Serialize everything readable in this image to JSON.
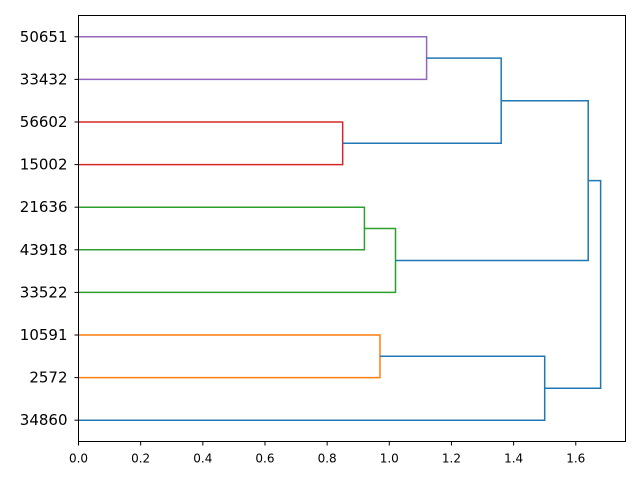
{
  "chart_data": {
    "type": "dendrogram",
    "orientation": "horizontal",
    "title": "",
    "xlabel": "",
    "ylabel": "",
    "xlim": [
      0,
      1.76
    ],
    "x_ticks": [
      0.0,
      0.2,
      0.4,
      0.6,
      0.8,
      1.0,
      1.2,
      1.4,
      1.6
    ],
    "x_tick_labels": [
      "0.0",
      "0.2",
      "0.4",
      "0.6",
      "0.8",
      "1.0",
      "1.2",
      "1.4",
      "1.6"
    ],
    "leaves": [
      "50651",
      "33432",
      "56602",
      "15002",
      "21636",
      "43918",
      "33522",
      "10591",
      "2572",
      "34860"
    ],
    "colors": {
      "purple": "#9467bd",
      "red": "#d62728",
      "green": "#2ca02c",
      "orange": "#ff7f0e",
      "blue": "#1f77b4"
    },
    "merges": [
      {
        "left": [
          0
        ],
        "right": [
          1
        ],
        "height": 1.12,
        "color": "#9467bd"
      },
      {
        "left": [
          2
        ],
        "right": [
          3
        ],
        "height": 0.85,
        "color": "#d62728"
      },
      {
        "left": [
          4
        ],
        "right": [
          5
        ],
        "height": 0.92,
        "color": "#2ca02c"
      },
      {
        "left": [
          4,
          5
        ],
        "right": [
          6
        ],
        "height": 1.02,
        "color": "#2ca02c"
      },
      {
        "left": [
          7
        ],
        "right": [
          8
        ],
        "height": 0.97,
        "color": "#ff7f0e"
      },
      {
        "left": [
          0,
          1
        ],
        "right": [
          2,
          3
        ],
        "height": 1.36,
        "color": "#1f77b4"
      },
      {
        "left": [
          0,
          1,
          2,
          3
        ],
        "right": [
          4,
          5,
          6
        ],
        "height": 1.64,
        "color": "#1f77b4"
      },
      {
        "left": [
          7,
          8
        ],
        "right": [
          9
        ],
        "height": 1.5,
        "color": "#1f77b4"
      },
      {
        "left": [
          0,
          1,
          2,
          3,
          4,
          5,
          6
        ],
        "right": [
          7,
          8,
          9
        ],
        "height": 1.68,
        "color": "#1f77b4"
      }
    ]
  }
}
